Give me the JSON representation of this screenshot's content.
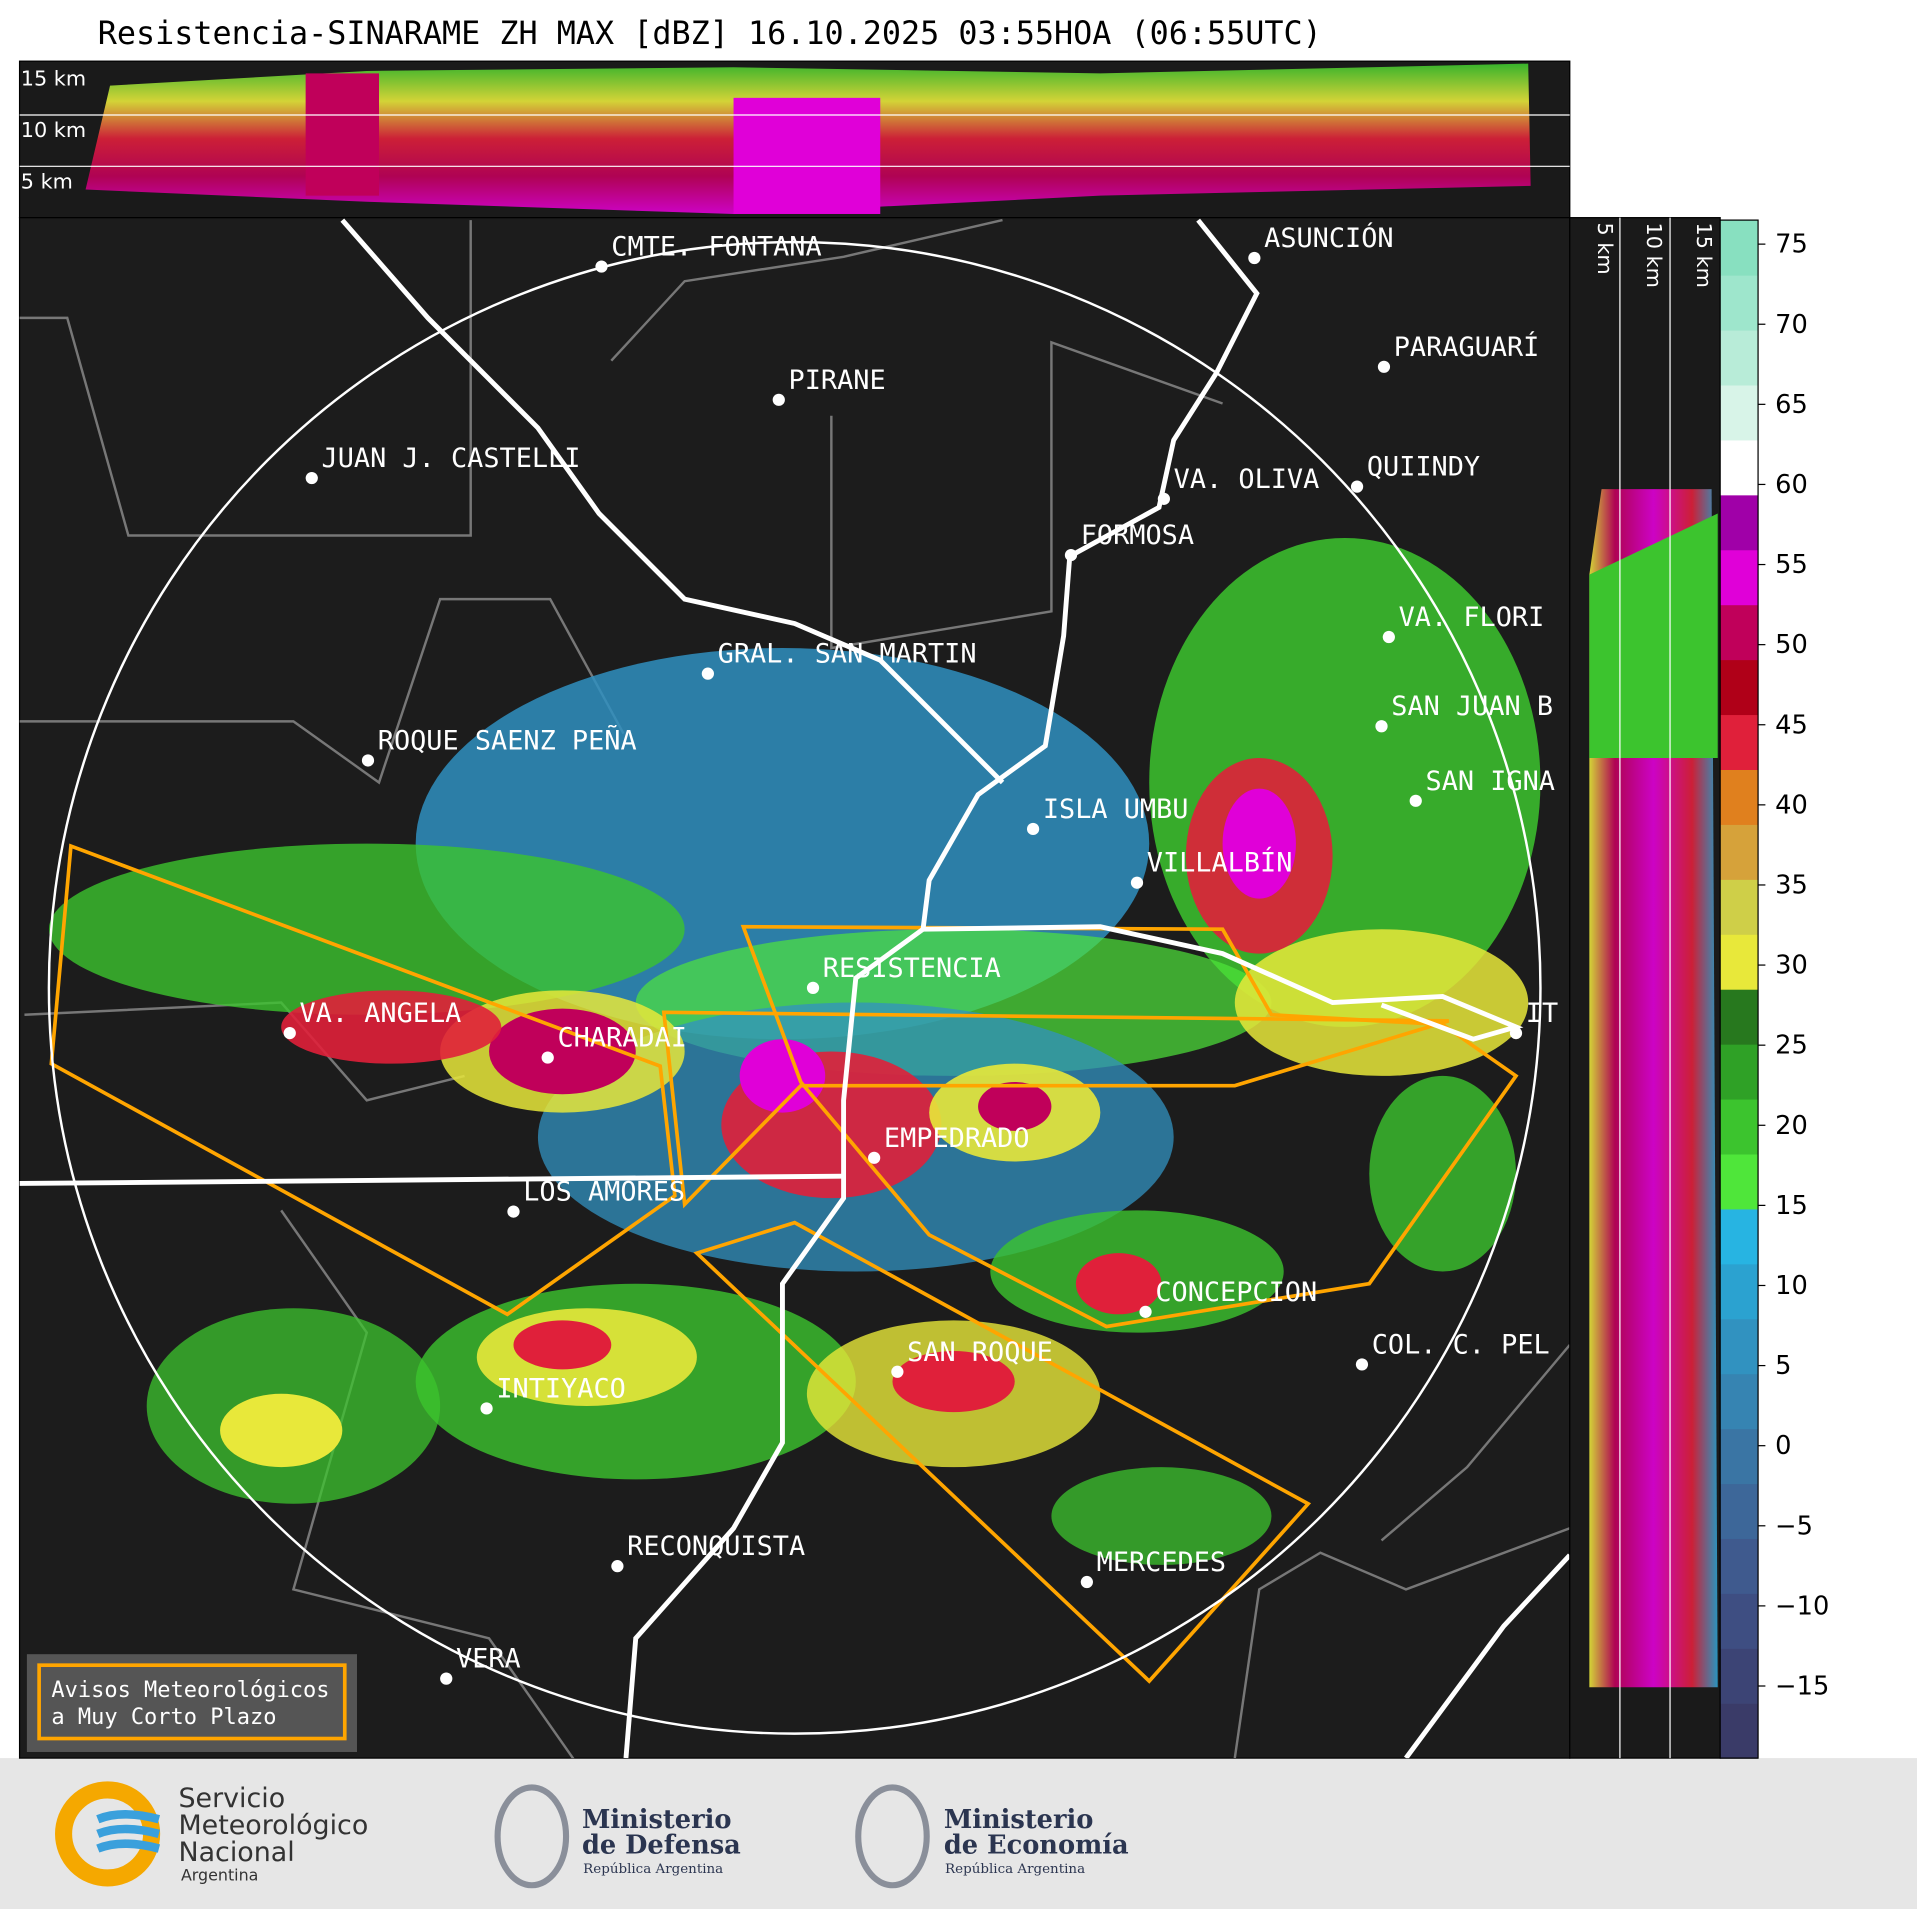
{
  "title": "Resistencia-SINARAME ZH MAX [dBZ] 16.10.2025 03:55HOA (06:55UTC)",
  "cross_section": {
    "height_labels": [
      "15 km",
      "10 km",
      "5 km"
    ]
  },
  "side_section": {
    "height_labels": [
      "5 km",
      "10 km",
      "15 km"
    ]
  },
  "cities": [
    "CMTE. FONTANA",
    "ASUNCIÓN",
    "PARAGUARÍ",
    "PIRANE",
    "JUAN J. CASTELLI",
    "VA. OLIVA",
    "QUIINDY",
    "FORMOSA",
    "VA. FLORI",
    "GRAL. SAN MARTIN",
    "SAN JUAN B",
    "ROQUE SAENZ PEÑA",
    "SAN IGNA",
    "ISLA UMBU",
    "VILLALBÍN",
    "RESISTENCIA",
    "VA. ANGELA",
    "CHARADAI",
    "IT",
    "EMPEDRADO",
    "LOS AMORES",
    "CONCEPCION",
    "COL. C. PEL",
    "SAN ROQUE",
    "INTIYACO",
    "RECONQUISTA",
    "MERCEDES",
    "VERA"
  ],
  "colorbar": {
    "lim": [
      -19.5,
      76.5
    ],
    "ticks": [
      75,
      70,
      65,
      60,
      55,
      50,
      45,
      40,
      35,
      30,
      25,
      20,
      15,
      10,
      5,
      0,
      {
        "value": -5,
        "label": "−5"
      },
      {
        "value": -10,
        "label": "−10"
      },
      {
        "value": -15,
        "label": "−15"
      }
    ],
    "colors": [
      "#3a3b68",
      "#3c4475",
      "#3e4e82",
      "#3f5a8e",
      "#3d6799",
      "#3a75a4",
      "#3684b2",
      "#3192c0",
      "#2ba2d0",
      "#27b4e2",
      "#4fe63a",
      "#3cc42e",
      "#2fa126",
      "#27781e",
      "#e8e83a",
      "#cfcf48",
      "#d6a23a",
      "#e0801e",
      "#e0203a",
      "#b00018",
      "#c0005a",
      "#e000d8",
      "#a000a8",
      "#ffffff",
      "#d8f4e8",
      "#b8ecd8",
      "#9ee6cc",
      "#88e0c0"
    ]
  },
  "legend": {
    "lines": [
      "Avisos Meteorológicos",
      "a Muy Corto Plazo"
    ]
  },
  "footer": {
    "smn": [
      "Servicio",
      "Meteorológico",
      "Nacional",
      "Argentina"
    ],
    "defensa": [
      "Ministerio",
      "de Defensa",
      "República Argentina"
    ],
    "economia": [
      "Ministerio",
      "de Economía",
      "República Argentina"
    ]
  }
}
